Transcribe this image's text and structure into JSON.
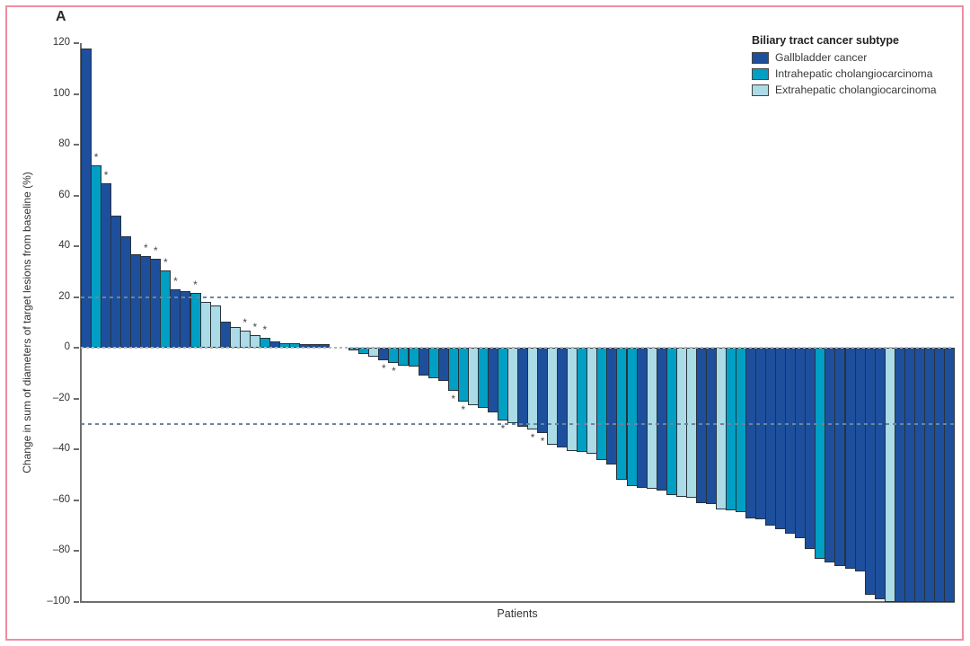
{
  "figure": {
    "panel_label": "A"
  },
  "colors": {
    "gallbladder": "#1e4f9c",
    "intrahepatic": "#009fc3",
    "extrahepatic": "#abdbe6",
    "threshold_line": "#6886a0",
    "zero_line": "#b5b5b5",
    "axis": "#6e6e6e",
    "frame": "#ee8ca0",
    "asterisk": "#4a4a4a"
  },
  "legend": {
    "title": "Biliary tract cancer subtype",
    "items": [
      {
        "label": "Gallbladder cancer",
        "subtype": "gallbladder"
      },
      {
        "label": "Intrahepatic cholangiocarcinoma",
        "subtype": "intrahepatic"
      },
      {
        "label": "Extrahepatic cholangiocarcinoma",
        "subtype": "extrahepatic"
      }
    ]
  },
  "chart_data": {
    "type": "bar",
    "variant": "waterfall",
    "title": "",
    "xlabel": "Patients",
    "ylabel": "Change in sum of diameters of target lesions from baseline (%)",
    "ylim": [
      -100,
      120
    ],
    "grid": false,
    "legend_position": "top-right",
    "y_ticks": [
      {
        "label": "120",
        "value": 120
      },
      {
        "label": "100",
        "value": 100
      },
      {
        "label": "80",
        "value": 80
      },
      {
        "label": "60",
        "value": 60
      },
      {
        "label": "40",
        "value": 40
      },
      {
        "label": "20",
        "value": 20
      },
      {
        "label": "0",
        "value": 0
      },
      {
        "label": "–20",
        "value": -20
      },
      {
        "label": "–40",
        "value": -40
      },
      {
        "label": "–60",
        "value": -60
      },
      {
        "label": "–80",
        "value": -80
      },
      {
        "label": "–100",
        "value": -100
      }
    ],
    "reference_lines": [
      {
        "value": 20,
        "style": "dashed",
        "color_key": "threshold_line"
      },
      {
        "value": 0,
        "style": "dashed",
        "color_key": "zero_line"
      },
      {
        "value": -30,
        "style": "dashed",
        "color_key": "threshold_line"
      }
    ],
    "bars": [
      {
        "value": 118,
        "subtype": "gallbladder"
      },
      {
        "value": 72,
        "subtype": "intrahepatic",
        "asterisk": true
      },
      {
        "value": 65,
        "subtype": "gallbladder",
        "asterisk": true
      },
      {
        "value": 52,
        "subtype": "gallbladder"
      },
      {
        "value": 44,
        "subtype": "gallbladder"
      },
      {
        "value": 37,
        "subtype": "gallbladder"
      },
      {
        "value": 36,
        "subtype": "gallbladder",
        "asterisk": true
      },
      {
        "value": 35,
        "subtype": "gallbladder",
        "asterisk": true
      },
      {
        "value": 30.5,
        "subtype": "intrahepatic",
        "asterisk": true
      },
      {
        "value": 23,
        "subtype": "gallbladder",
        "asterisk": true
      },
      {
        "value": 22.5,
        "subtype": "gallbladder"
      },
      {
        "value": 21.8,
        "subtype": "intrahepatic",
        "asterisk": true
      },
      {
        "value": 18,
        "subtype": "extrahepatic"
      },
      {
        "value": 16.7,
        "subtype": "extrahepatic"
      },
      {
        "value": 10.5,
        "subtype": "gallbladder"
      },
      {
        "value": 8.4,
        "subtype": "extrahepatic"
      },
      {
        "value": 6.8,
        "subtype": "extrahepatic",
        "asterisk": true
      },
      {
        "value": 5.2,
        "subtype": "extrahepatic",
        "asterisk": true
      },
      {
        "value": 4,
        "subtype": "intrahepatic",
        "asterisk": true
      },
      {
        "value": 2.5,
        "subtype": "gallbladder"
      },
      {
        "value": 2,
        "subtype": "intrahepatic"
      },
      {
        "value": 2,
        "subtype": "intrahepatic"
      },
      {
        "value": 1.5,
        "subtype": "gallbladder"
      },
      {
        "value": 1.5,
        "subtype": "gallbladder"
      },
      {
        "value": 1.5,
        "subtype": "gallbladder"
      },
      {
        "value": 0,
        "subtype": "gallbladder"
      },
      {
        "value": 0,
        "subtype": "intrahepatic"
      },
      {
        "value": -1,
        "subtype": "intrahepatic"
      },
      {
        "value": -2.5,
        "subtype": "intrahepatic"
      },
      {
        "value": -3.5,
        "subtype": "extrahepatic"
      },
      {
        "value": -5,
        "subtype": "gallbladder",
        "asterisk": true
      },
      {
        "value": -6,
        "subtype": "intrahepatic",
        "asterisk": true
      },
      {
        "value": -7,
        "subtype": "intrahepatic"
      },
      {
        "value": -7.5,
        "subtype": "intrahepatic"
      },
      {
        "value": -11,
        "subtype": "gallbladder"
      },
      {
        "value": -12,
        "subtype": "intrahepatic"
      },
      {
        "value": -13,
        "subtype": "gallbladder"
      },
      {
        "value": -17,
        "subtype": "intrahepatic",
        "asterisk": true
      },
      {
        "value": -21,
        "subtype": "intrahepatic",
        "asterisk": true
      },
      {
        "value": -22.5,
        "subtype": "extrahepatic"
      },
      {
        "value": -23.5,
        "subtype": "intrahepatic"
      },
      {
        "value": -25.5,
        "subtype": "gallbladder"
      },
      {
        "value": -28.5,
        "subtype": "intrahepatic",
        "asterisk": true
      },
      {
        "value": -29.5,
        "subtype": "extrahepatic"
      },
      {
        "value": -31,
        "subtype": "gallbladder"
      },
      {
        "value": -32,
        "subtype": "extrahepatic",
        "asterisk": true
      },
      {
        "value": -33.5,
        "subtype": "gallbladder",
        "asterisk": true
      },
      {
        "value": -38,
        "subtype": "extrahepatic"
      },
      {
        "value": -39,
        "subtype": "gallbladder"
      },
      {
        "value": -40.5,
        "subtype": "extrahepatic"
      },
      {
        "value": -41,
        "subtype": "intrahepatic"
      },
      {
        "value": -41.5,
        "subtype": "extrahepatic"
      },
      {
        "value": -44,
        "subtype": "intrahepatic"
      },
      {
        "value": -46,
        "subtype": "gallbladder"
      },
      {
        "value": -52,
        "subtype": "intrahepatic"
      },
      {
        "value": -54.5,
        "subtype": "intrahepatic"
      },
      {
        "value": -55,
        "subtype": "gallbladder"
      },
      {
        "value": -55.5,
        "subtype": "extrahepatic"
      },
      {
        "value": -56,
        "subtype": "gallbladder"
      },
      {
        "value": -58,
        "subtype": "intrahepatic"
      },
      {
        "value": -58.5,
        "subtype": "extrahepatic"
      },
      {
        "value": -59,
        "subtype": "extrahepatic"
      },
      {
        "value": -61,
        "subtype": "gallbladder"
      },
      {
        "value": -61.5,
        "subtype": "gallbladder"
      },
      {
        "value": -63.5,
        "subtype": "extrahepatic"
      },
      {
        "value": -64,
        "subtype": "intrahepatic"
      },
      {
        "value": -64.5,
        "subtype": "intrahepatic"
      },
      {
        "value": -67,
        "subtype": "gallbladder"
      },
      {
        "value": -67.5,
        "subtype": "gallbladder"
      },
      {
        "value": -70,
        "subtype": "gallbladder"
      },
      {
        "value": -71.5,
        "subtype": "gallbladder"
      },
      {
        "value": -73,
        "subtype": "gallbladder"
      },
      {
        "value": -75,
        "subtype": "gallbladder"
      },
      {
        "value": -79,
        "subtype": "gallbladder"
      },
      {
        "value": -83,
        "subtype": "intrahepatic"
      },
      {
        "value": -84.5,
        "subtype": "gallbladder"
      },
      {
        "value": -86,
        "subtype": "gallbladder"
      },
      {
        "value": -87,
        "subtype": "gallbladder"
      },
      {
        "value": -88,
        "subtype": "gallbladder"
      },
      {
        "value": -97,
        "subtype": "gallbladder"
      },
      {
        "value": -99,
        "subtype": "gallbladder"
      },
      {
        "value": -100,
        "subtype": "extrahepatic"
      },
      {
        "value": -100,
        "subtype": "gallbladder"
      },
      {
        "value": -100,
        "subtype": "gallbladder"
      },
      {
        "value": -100,
        "subtype": "gallbladder"
      },
      {
        "value": -100,
        "subtype": "gallbladder"
      },
      {
        "value": -100,
        "subtype": "gallbladder"
      },
      {
        "value": -100,
        "subtype": "gallbladder"
      }
    ]
  }
}
